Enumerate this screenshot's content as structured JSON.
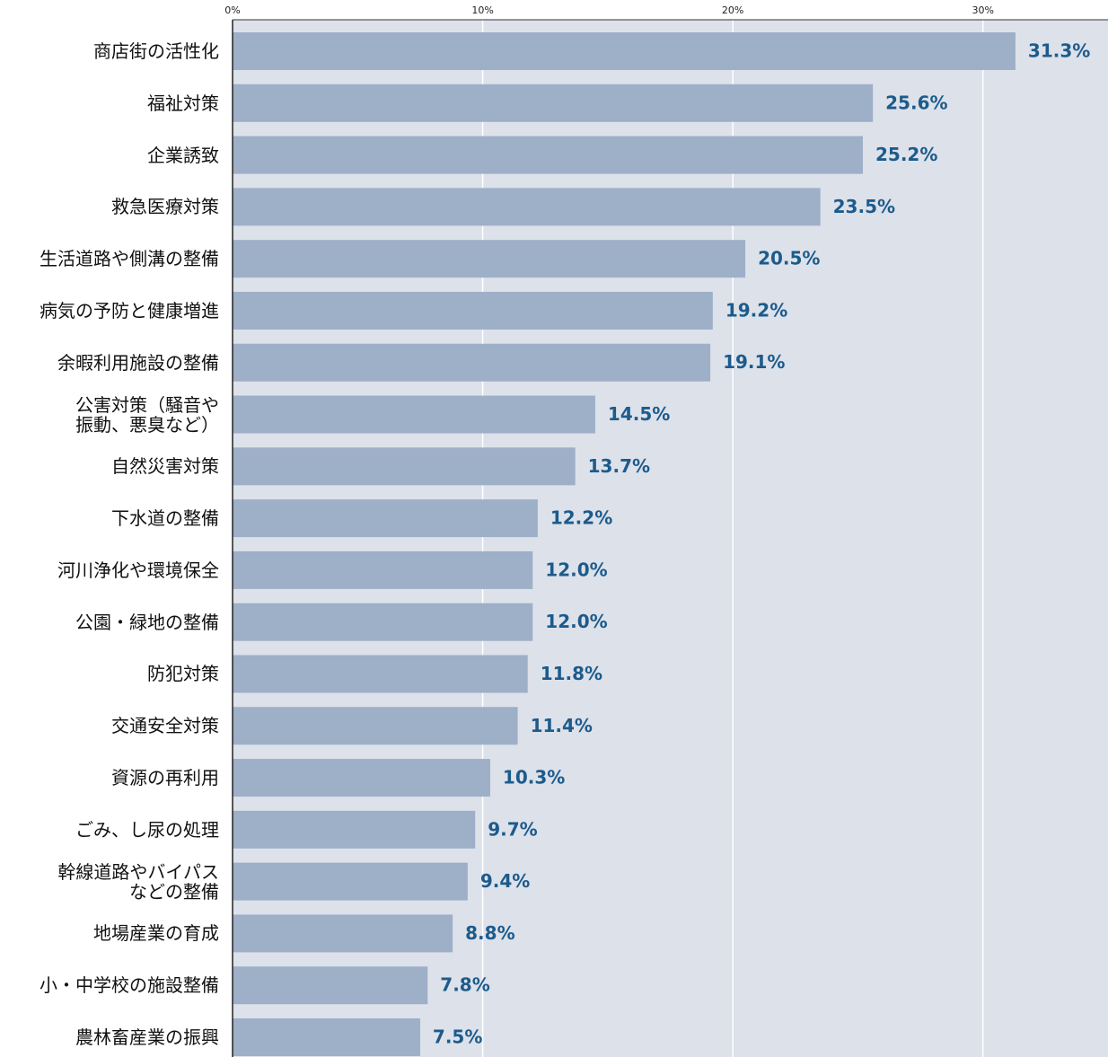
{
  "chart_data": {
    "type": "bar",
    "orientation": "horizontal",
    "categories": [
      "商店街の活性化",
      "福祉対策",
      "企業誘致",
      "救急医療対策",
      "生活道路や側溝の整備",
      "病気の予防と健康増進",
      "余暇利用施設の整備",
      "公害対策（騒音や\n振動、悪臭など）",
      "自然災害対策",
      "下水道の整備",
      "河川浄化や環境保全",
      "公園・緑地の整備",
      "防犯対策",
      "交通安全対策",
      "資源の再利用",
      "ごみ、し尿の処理",
      "幹線道路やバイパス\nなどの整備",
      "地場産業の育成",
      "小・中学校の施設整備",
      "農林畜産業の振興"
    ],
    "values": [
      31.3,
      25.6,
      25.2,
      23.5,
      20.5,
      19.2,
      19.1,
      14.5,
      13.7,
      12.2,
      12.0,
      12.0,
      11.8,
      11.4,
      10.3,
      9.7,
      9.4,
      8.8,
      7.8,
      7.5
    ],
    "value_labels": [
      "31.3%",
      "25.6%",
      "25.2%",
      "23.5%",
      "20.5%",
      "19.2%",
      "19.1%",
      "14.5%",
      "13.7%",
      "12.2%",
      "12.0%",
      "12.0%",
      "11.8%",
      "11.4%",
      "10.3%",
      "9.7%",
      "9.4%",
      "8.8%",
      "7.8%",
      "7.5%"
    ],
    "color": "#9eafc8",
    "xlim": [
      0,
      35
    ],
    "xticks": [
      {
        "value": 0,
        "label": "0%"
      },
      {
        "value": 10,
        "label": "10%"
      },
      {
        "value": 20,
        "label": "20%"
      },
      {
        "value": 30,
        "label": "30%"
      }
    ],
    "grid": true
  }
}
